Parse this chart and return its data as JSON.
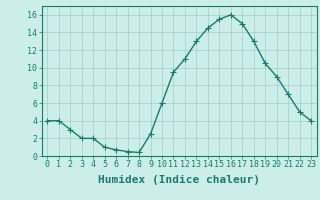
{
  "x": [
    0,
    1,
    2,
    3,
    4,
    5,
    6,
    7,
    8,
    9,
    10,
    11,
    12,
    13,
    14,
    15,
    16,
    17,
    18,
    19,
    20,
    21,
    22,
    23
  ],
  "y": [
    4,
    4,
    3,
    2,
    2,
    1,
    0.7,
    0.5,
    0.4,
    2.5,
    6,
    9.5,
    11,
    13,
    14.5,
    15.5,
    16,
    15,
    13,
    10.5,
    9,
    7,
    5,
    4
  ],
  "line_color": "#1a7a6e",
  "marker": "+",
  "marker_size": 4,
  "marker_edge_width": 0.8,
  "background_color": "#cceee8",
  "grid_color": "#a0cccc",
  "xlabel": "Humidex (Indice chaleur)",
  "xlim": [
    -0.5,
    23.5
  ],
  "ylim": [
    0,
    17
  ],
  "yticks": [
    0,
    2,
    4,
    6,
    8,
    10,
    12,
    14,
    16
  ],
  "xticks": [
    0,
    1,
    2,
    3,
    4,
    5,
    6,
    7,
    8,
    9,
    10,
    11,
    12,
    13,
    14,
    15,
    16,
    17,
    18,
    19,
    20,
    21,
    22,
    23
  ],
  "xtick_labels": [
    "0",
    "1",
    "2",
    "3",
    "4",
    "5",
    "6",
    "7",
    "8",
    "9",
    "10",
    "11",
    "12",
    "13",
    "14",
    "15",
    "16",
    "17",
    "18",
    "19",
    "20",
    "21",
    "22",
    "23"
  ],
  "tick_color": "#1a7a6e",
  "label_color": "#1a7a6e",
  "font_family": "monospace",
  "xlabel_fontsize": 8,
  "tick_fontsize": 6,
  "line_width": 1.0,
  "spine_color": "#1a7a6e"
}
